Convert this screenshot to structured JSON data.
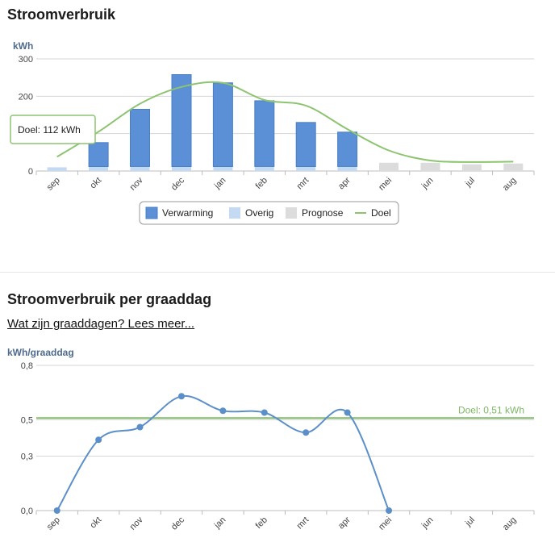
{
  "section1": {
    "title": "Stroomverbruik"
  },
  "section2": {
    "title": "Stroomverbruik per graaddag",
    "link": "Wat zijn graaddagen? Lees meer..."
  },
  "colors": {
    "verwarming": "#5b8fd6",
    "overig": "#c3daf2",
    "prognose": "#dcdcdc",
    "doel": "#8dc470",
    "line2": "#5b8fc9",
    "target2": "#7fb866"
  },
  "tooltip": {
    "text": "Doel: 112 kWh"
  },
  "chart_data": [
    {
      "type": "bar",
      "title": "Stroomverbruik",
      "ylabel": "kWh",
      "ylim": [
        0,
        300
      ],
      "yticks": [
        0,
        100,
        200,
        300
      ],
      "yticklabels": [
        "0",
        "",
        "200",
        "300"
      ],
      "stacked": true,
      "grid": true,
      "legend_position": "bottom",
      "categories": [
        "sep",
        "okt",
        "nov",
        "dec",
        "jan",
        "feb",
        "mrt",
        "apr",
        "mei",
        "jun",
        "jul",
        "aug"
      ],
      "series": [
        {
          "name": "Verwarming",
          "type": "bar",
          "values": [
            0,
            64,
            153,
            246,
            224,
            176,
            118,
            92,
            0,
            0,
            0,
            0
          ]
        },
        {
          "name": "Overig",
          "type": "bar",
          "values": [
            10,
            12,
            12,
            12,
            12,
            12,
            12,
            12,
            0,
            0,
            0,
            0
          ]
        },
        {
          "name": "Prognose",
          "type": "bar",
          "values": [
            0,
            0,
            0,
            0,
            0,
            0,
            0,
            0,
            22,
            22,
            18,
            20
          ]
        },
        {
          "name": "Doel",
          "type": "line",
          "values": [
            38,
            105,
            180,
            225,
            236,
            190,
            175,
            112,
            55,
            28,
            24,
            25
          ]
        }
      ]
    },
    {
      "type": "line",
      "title": "Stroomverbruik per graaddag",
      "ylabel": "kWh/graaddag",
      "ylim": [
        0,
        0.8
      ],
      "yticks": [
        0,
        0.3,
        0.5,
        0.8
      ],
      "yticklabels": [
        "0,0",
        "0,3",
        "0,5",
        "0,8"
      ],
      "grid": true,
      "categories": [
        "sep",
        "okt",
        "nov",
        "dec",
        "jan",
        "feb",
        "mrt",
        "apr",
        "mei",
        "jun",
        "jul",
        "aug"
      ],
      "series": [
        {
          "values": [
            0.0,
            0.39,
            0.46,
            0.63,
            0.55,
            0.54,
            0.43,
            0.54,
            0.0,
            null,
            null,
            null
          ]
        }
      ],
      "target": {
        "value": 0.51,
        "label": "Doel: 0,51 kWh"
      }
    }
  ]
}
